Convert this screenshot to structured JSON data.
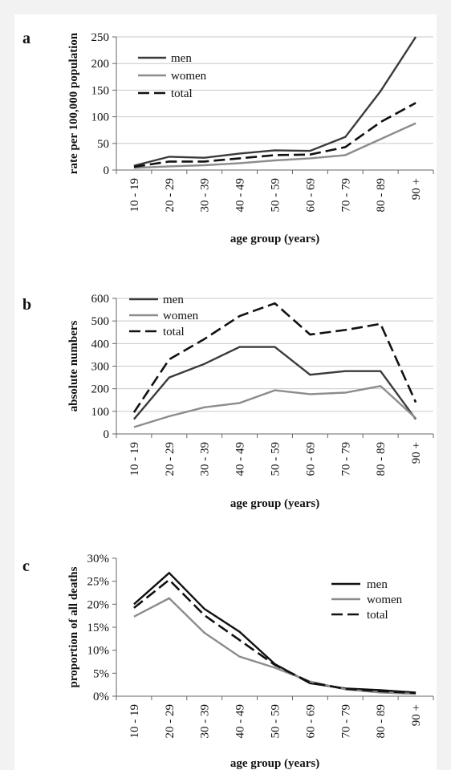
{
  "chart_data": [
    {
      "type": "line",
      "panel_label": "a",
      "categories": [
        "10 - 19",
        "20 - 29",
        "30 - 39",
        "40 - 49",
        "50 - 59",
        "60 - 69",
        "70 - 79",
        "80 - 89",
        "90 +"
      ],
      "series": [
        {
          "name": "men",
          "color": "#3a3a3a",
          "dash": "solid",
          "values": [
            8,
            25,
            23,
            31,
            37,
            36,
            62,
            148,
            250
          ]
        },
        {
          "name": "women",
          "color": "#8c8c8c",
          "dash": "solid",
          "values": [
            4,
            7,
            9,
            13,
            18,
            22,
            28,
            58,
            88
          ]
        },
        {
          "name": "total",
          "color": "#111111",
          "dash": "dashed",
          "values": [
            6,
            16,
            16,
            22,
            28,
            29,
            43,
            90,
            126
          ]
        }
      ],
      "xlabel": "age group (years)",
      "ylabel": "rate per 100,000 population",
      "ylim": [
        0,
        250
      ],
      "yticks": [
        "0",
        "50",
        "100",
        "150",
        "200",
        "250"
      ],
      "legend": "top-left",
      "grid": true
    },
    {
      "type": "line",
      "panel_label": "b",
      "categories": [
        "10 - 19",
        "20 - 29",
        "30 - 39",
        "40 - 49",
        "50 - 59",
        "60 - 69",
        "70 - 79",
        "80 - 89",
        "90 +"
      ],
      "series": [
        {
          "name": "men",
          "color": "#3a3a3a",
          "dash": "solid",
          "values": [
            65,
            250,
            310,
            385,
            385,
            262,
            278,
            278,
            65
          ]
        },
        {
          "name": "women",
          "color": "#8c8c8c",
          "dash": "solid",
          "values": [
            30,
            78,
            118,
            137,
            193,
            176,
            183,
            212,
            70
          ]
        },
        {
          "name": "total",
          "color": "#111111",
          "dash": "dashed",
          "values": [
            95,
            330,
            420,
            522,
            578,
            440,
            460,
            487,
            140
          ]
        }
      ],
      "xlabel": "age group (years)",
      "ylabel": "absolute numbers",
      "ylim": [
        0,
        600
      ],
      "yticks": [
        "0",
        "100",
        "200",
        "300",
        "400",
        "500",
        "600"
      ],
      "legend": "top-left",
      "grid": true
    },
    {
      "type": "line",
      "panel_label": "c",
      "categories": [
        "10 - 19",
        "20 - 29",
        "30 - 39",
        "40 - 49",
        "50 - 59",
        "60 - 69",
        "70 - 79",
        "80 - 89",
        "90 +"
      ],
      "series": [
        {
          "name": "men",
          "color": "#111111",
          "dash": "solid",
          "values": [
            20,
            26.8,
            19,
            14,
            7,
            2.8,
            1.7,
            1.3,
            0.8
          ]
        },
        {
          "name": "women",
          "color": "#8c8c8c",
          "dash": "solid",
          "values": [
            17.3,
            21.3,
            13.8,
            8.6,
            6.2,
            3.2,
            1.5,
            0.8,
            0.5
          ]
        },
        {
          "name": "total",
          "color": "#111111",
          "dash": "dashed",
          "values": [
            19.2,
            25.3,
            17.6,
            12.2,
            6.8,
            3.0,
            1.6,
            1.1,
            0.7
          ]
        }
      ],
      "xlabel": "age group (years)",
      "ylabel": "proportion of all deaths",
      "ylim": [
        0,
        30
      ],
      "yticks": [
        "0%",
        "5%",
        "10%",
        "15%",
        "20%",
        "25%",
        "30%"
      ],
      "legend": "top-right",
      "grid": false
    }
  ]
}
